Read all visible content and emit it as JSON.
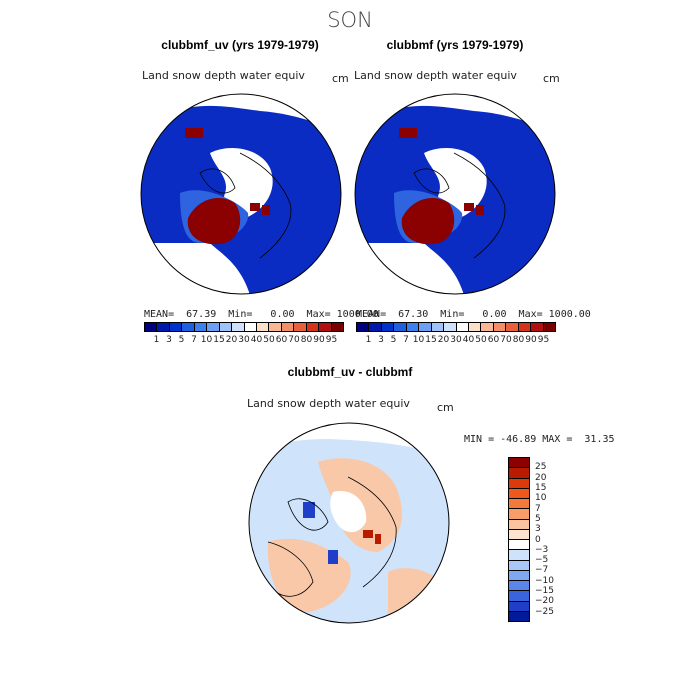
{
  "season": "SON",
  "panels": [
    {
      "title": "clubbmf_uv (yrs 1979-1979)",
      "variable": "Land snow depth water equiv",
      "units": "cm",
      "stats": "MEAN=  67.39  Min=   0.00  Max= 1000.00",
      "mean": 67.39,
      "min": 0.0,
      "max": 1000.0
    },
    {
      "title": "clubbmf (yrs 1979-1979)",
      "variable": "Land snow depth water equiv",
      "units": "cm",
      "stats": "MEAN=  67.30  Min=   0.00  Max= 1000.00",
      "mean": 67.3,
      "min": 0.0,
      "max": 1000.0
    }
  ],
  "diff_panel": {
    "title": "clubbmf_uv - clubbmf",
    "variable": "Land snow depth water equiv",
    "units": "cm",
    "stats": "MIN = -46.89 MAX =  31.35",
    "min": -46.89,
    "max": 31.35
  },
  "colorbar": {
    "labels": [
      "1",
      "3",
      "5",
      "7",
      "10",
      "15",
      "20",
      "30",
      "40",
      "50",
      "60",
      "70",
      "80",
      "90",
      "95"
    ],
    "colors": [
      "#000080",
      "#0019a8",
      "#0033cc",
      "#1f5fe0",
      "#3f7fef",
      "#6f9ff3",
      "#9fc3f7",
      "#d0e2fb",
      "#ffffff",
      "#fde0c8",
      "#f8b896",
      "#f28e68",
      "#e8603c",
      "#d4341c",
      "#b01010",
      "#7a0000"
    ]
  },
  "diff_colorbar": {
    "labels": [
      "25",
      "20",
      "15",
      "10",
      "7",
      "5",
      "3",
      "0",
      "−3",
      "−5",
      "−7",
      "−10",
      "−15",
      "−20",
      "−25"
    ],
    "colors": [
      "#8b0000",
      "#b81b00",
      "#dc3a0a",
      "#ef5a1c",
      "#f47a3c",
      "#f79d6c",
      "#fac4a0",
      "#fde4cf",
      "#ffffff",
      "#cfe2fb",
      "#a8c8f8",
      "#7fa8f2",
      "#5a86ea",
      "#3a64dc",
      "#1f3fc8",
      "#001a9a"
    ]
  },
  "colors": {
    "snow_low": "#0a2ab8",
    "snow_high": "#7a0000",
    "diff_pos": "#f8c8a8",
    "diff_neg": "#cfe3fb"
  }
}
